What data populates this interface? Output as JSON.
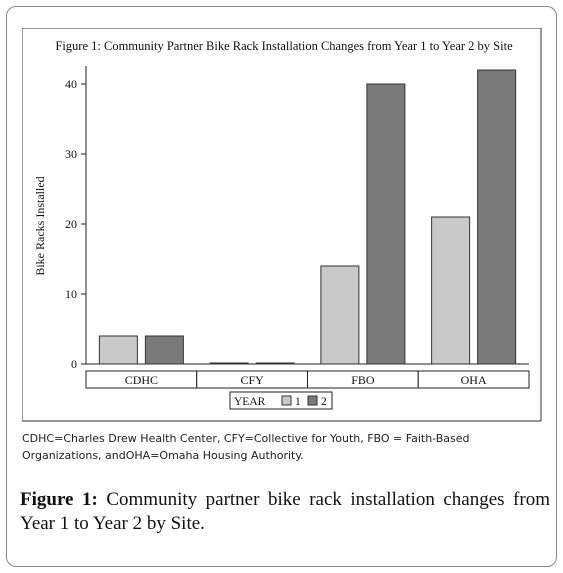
{
  "chart_data": {
    "type": "bar",
    "title": "Figure 1: Community Partner Bike Rack Installation Changes from Year 1 to Year 2 by Site",
    "xlabel": "",
    "ylabel": "Bike Racks Installed",
    "ylim": [
      0,
      42
    ],
    "yticks": [
      0,
      10,
      20,
      30,
      40
    ],
    "grid": false,
    "categories": [
      "CDHC",
      "CFY",
      "FBO",
      "OHA"
    ],
    "series": [
      {
        "name": "1",
        "values": [
          4,
          0,
          14,
          21
        ],
        "color": "#c9c9c9"
      },
      {
        "name": "2",
        "values": [
          4,
          0,
          40,
          42
        ],
        "color": "#7a7a7a"
      }
    ],
    "legend": {
      "title": "YEAR",
      "position": "bottom"
    }
  },
  "note": {
    "line1": "CDHC=Charles Drew Health Center, CFY=Collective for Youth, FBO = Faith-Based",
    "line2": "Organizations, andOHA=Omaha Housing Authority."
  },
  "caption": {
    "label": "Figure 1:",
    "text": " Community partner bike rack installation changes from Year 1 to Year 2 by Site."
  },
  "colors": {
    "frame_border": "#8a8a8a",
    "bar_outline": "#333333"
  }
}
